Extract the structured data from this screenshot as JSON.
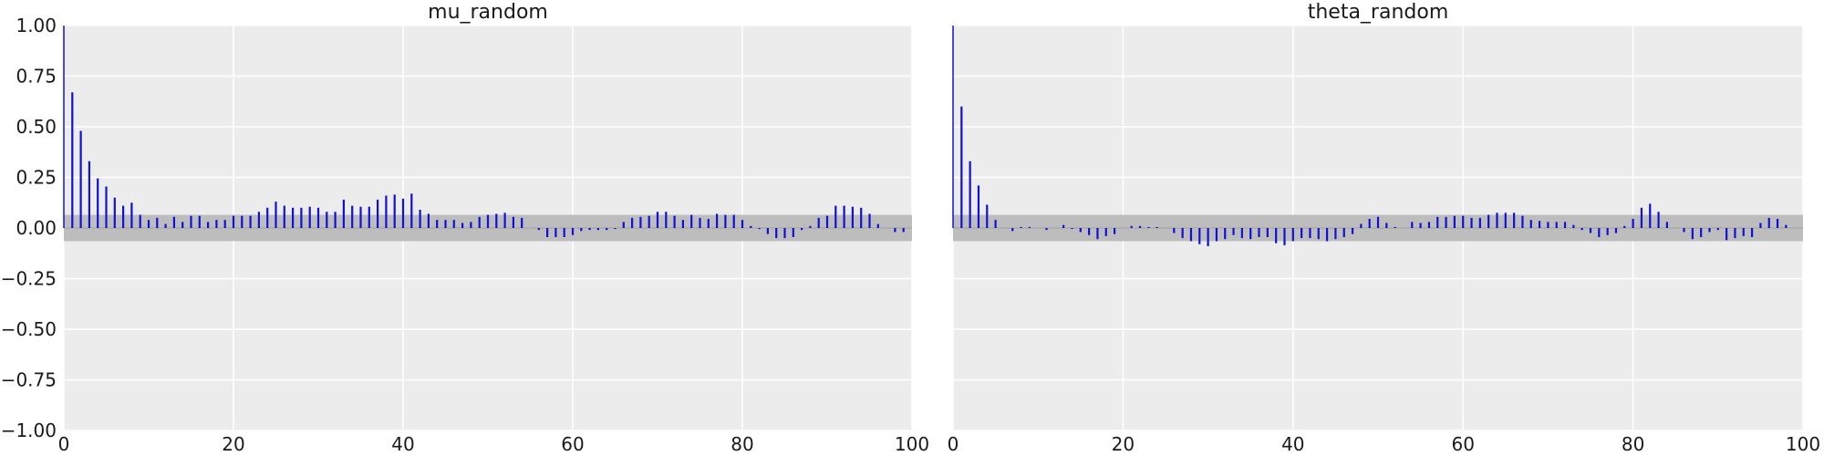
{
  "chart_data": [
    {
      "type": "bar",
      "title": "mu_random",
      "xlabel": "",
      "ylabel": "",
      "xlim": [
        0,
        100
      ],
      "ylim": [
        -1.0,
        1.0
      ],
      "x_ticks": [
        0,
        20,
        40,
        60,
        80,
        100
      ],
      "y_ticks": [
        1.0,
        0.75,
        0.5,
        0.25,
        0.0,
        -0.25,
        -0.5,
        -0.75,
        -1.0
      ],
      "x_tick_labels": [
        "0",
        "20",
        "40",
        "60",
        "80",
        "100"
      ],
      "y_tick_labels": [
        "1.00",
        "0.75",
        "0.50",
        "0.25",
        "0.00",
        "−0.25",
        "−0.50",
        "−0.75",
        "−1.00"
      ],
      "grid": true,
      "confidence_band": [
        -0.065,
        0.065
      ],
      "values": [
        1.0,
        0.67,
        0.48,
        0.33,
        0.245,
        0.205,
        0.15,
        0.11,
        0.125,
        0.065,
        0.04,
        0.05,
        0.02,
        0.055,
        0.03,
        0.06,
        0.06,
        0.03,
        0.04,
        0.04,
        0.06,
        0.06,
        0.06,
        0.08,
        0.1,
        0.13,
        0.11,
        0.1,
        0.1,
        0.105,
        0.1,
        0.08,
        0.08,
        0.14,
        0.11,
        0.105,
        0.105,
        0.14,
        0.16,
        0.165,
        0.145,
        0.17,
        0.09,
        0.07,
        0.04,
        0.04,
        0.04,
        0.025,
        0.03,
        0.055,
        0.065,
        0.07,
        0.075,
        0.055,
        0.05,
        0.0,
        -0.01,
        -0.045,
        -0.045,
        -0.045,
        -0.035,
        -0.015,
        -0.01,
        -0.01,
        -0.01,
        -0.005,
        0.03,
        0.05,
        0.055,
        0.06,
        0.08,
        0.08,
        0.06,
        0.04,
        0.065,
        0.05,
        0.045,
        0.07,
        0.065,
        0.065,
        0.04,
        0.01,
        -0.005,
        -0.03,
        -0.05,
        -0.05,
        -0.045,
        -0.01,
        0.01,
        0.05,
        0.06,
        0.11,
        0.11,
        0.105,
        0.1,
        0.07,
        0.02,
        0.0,
        -0.02,
        -0.02
      ]
    },
    {
      "type": "bar",
      "title": "theta_random",
      "xlabel": "",
      "ylabel": "",
      "xlim": [
        0,
        100
      ],
      "ylim": [
        -1.0,
        1.0
      ],
      "x_ticks": [
        0,
        20,
        40,
        60,
        80,
        100
      ],
      "x_tick_labels": [
        "0",
        "20",
        "40",
        "60",
        "80",
        "100"
      ],
      "grid": true,
      "confidence_band": [
        -0.065,
        0.065
      ],
      "values": [
        1.0,
        0.6,
        0.33,
        0.21,
        0.115,
        0.04,
        0.0,
        -0.015,
        0.005,
        0.005,
        0.0,
        -0.01,
        0.0,
        0.015,
        -0.005,
        -0.02,
        -0.035,
        -0.055,
        -0.04,
        -0.03,
        0.0,
        0.01,
        0.01,
        0.005,
        0.005,
        0.0,
        -0.025,
        -0.05,
        -0.065,
        -0.08,
        -0.09,
        -0.065,
        -0.055,
        -0.035,
        -0.05,
        -0.055,
        -0.045,
        -0.045,
        -0.075,
        -0.085,
        -0.065,
        -0.05,
        -0.05,
        -0.055,
        -0.065,
        -0.055,
        -0.045,
        -0.03,
        0.02,
        0.045,
        0.055,
        0.025,
        0.005,
        0.0,
        0.03,
        0.025,
        0.03,
        0.055,
        0.055,
        0.06,
        0.06,
        0.05,
        0.05,
        0.065,
        0.075,
        0.075,
        0.075,
        0.06,
        0.04,
        0.035,
        0.03,
        0.03,
        0.03,
        0.015,
        -0.01,
        -0.025,
        -0.045,
        -0.035,
        -0.025,
        0.01,
        0.045,
        0.1,
        0.12,
        0.08,
        0.03,
        0.0,
        -0.02,
        -0.055,
        -0.045,
        -0.02,
        -0.01,
        -0.06,
        -0.05,
        -0.04,
        -0.045,
        0.025,
        0.05,
        0.045,
        0.015,
        0.0,
        0.0
      ]
    }
  ]
}
